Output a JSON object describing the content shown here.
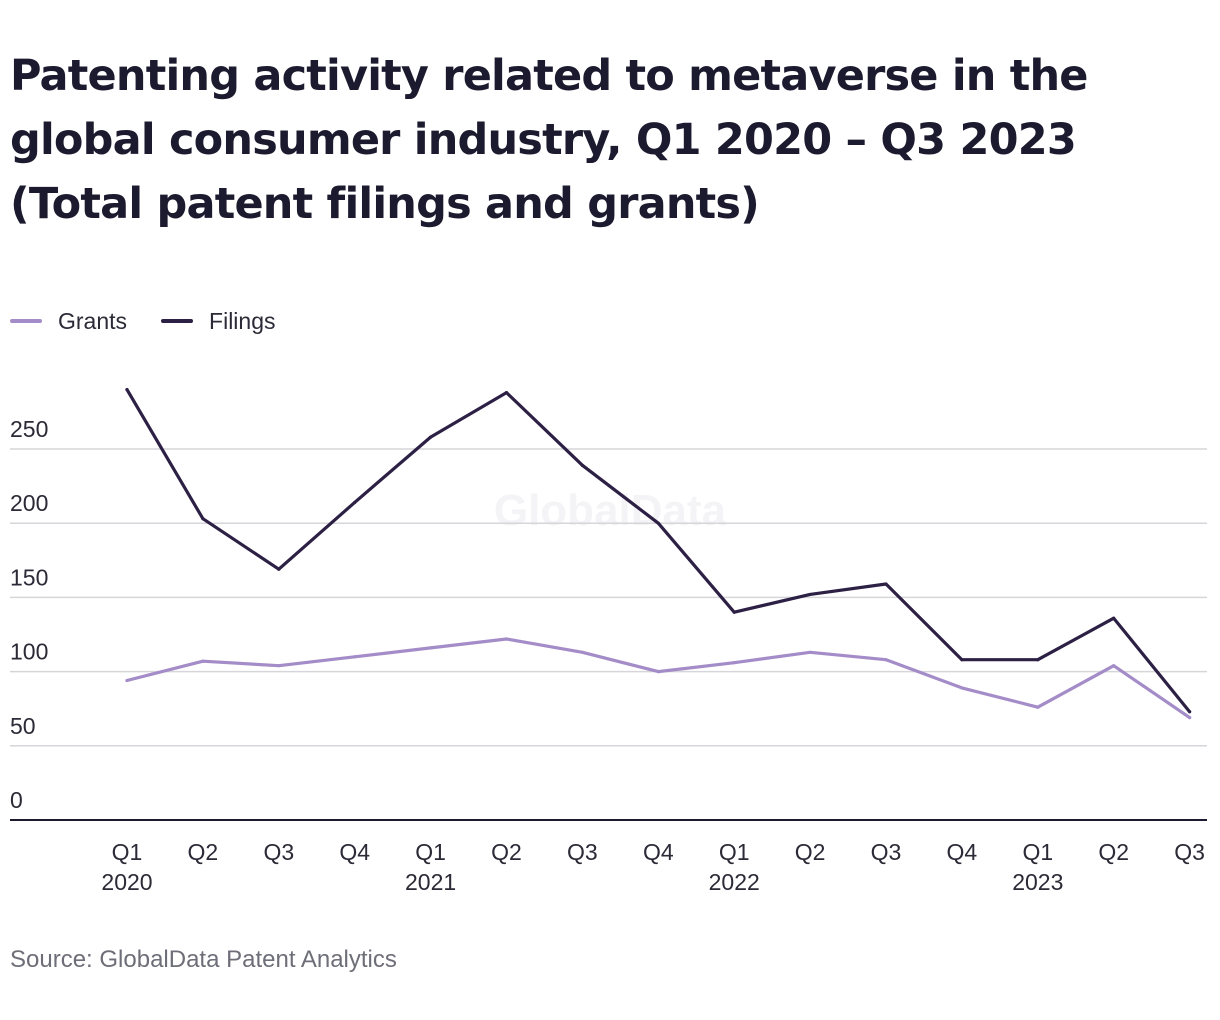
{
  "chart_data": {
    "type": "line",
    "title": "Patenting activity related to metaverse in the global consumer industry, Q1 2020 – Q3 2023 (Total patent filings and grants)",
    "categories": [
      "Q1",
      "Q2",
      "Q3",
      "Q4",
      "Q1",
      "Q2",
      "Q3",
      "Q4",
      "Q1",
      "Q2",
      "Q3",
      "Q4",
      "Q1",
      "Q2",
      "Q3"
    ],
    "year_labels": [
      {
        "index": 0,
        "label": "2020"
      },
      {
        "index": 4,
        "label": "2021"
      },
      {
        "index": 8,
        "label": "2022"
      },
      {
        "index": 12,
        "label": "2023"
      }
    ],
    "series": [
      {
        "name": "Grants",
        "color": "#a48cc8",
        "values": [
          94,
          107,
          104,
          110,
          116,
          122,
          113,
          100,
          106,
          113,
          108,
          89,
          76,
          104,
          69
        ]
      },
      {
        "name": "Filings",
        "color": "#2d2045",
        "values": [
          290,
          203,
          169,
          214,
          258,
          288,
          239,
          200,
          140,
          152,
          159,
          108,
          108,
          136,
          73
        ]
      }
    ],
    "yticks": [
      0,
      50,
      100,
      150,
      200,
      250
    ],
    "ylim": [
      0,
      300
    ],
    "grid": true,
    "legend_position": "top-left",
    "watermark": "GlobalData"
  },
  "source": "Source: GlobalData Patent Analytics"
}
